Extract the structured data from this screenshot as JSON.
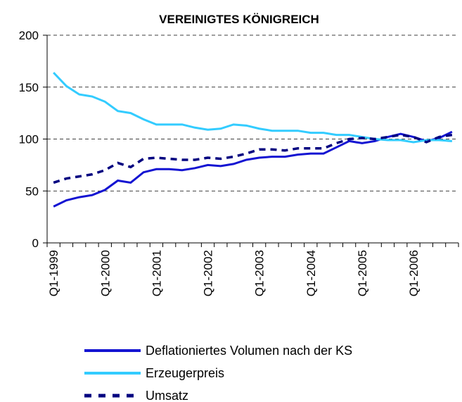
{
  "chart_data": {
    "type": "line",
    "title": "VEREINIGTES KÖNIGREICH",
    "categories": [
      "Q1-1999",
      null,
      null,
      null,
      "Q1-2000",
      null,
      null,
      null,
      "Q1-2001",
      null,
      null,
      null,
      "Q1-2002",
      null,
      null,
      null,
      "Q1-2003",
      null,
      null,
      null,
      "Q1-2004",
      null,
      null,
      null,
      "Q1-2005",
      null,
      null,
      null,
      "Q1-2006",
      null,
      null,
      null
    ],
    "series": [
      {
        "name": "Deflationiertes Volumen nach der KS",
        "color": "#1414d2",
        "dash": false,
        "values": [
          35,
          41,
          44,
          46,
          51,
          60,
          58,
          68,
          71,
          71,
          70,
          72,
          75,
          74,
          76,
          80,
          82,
          83,
          83,
          85,
          86,
          86,
          92,
          98,
          96,
          98,
          102,
          105,
          102,
          98,
          101,
          107
        ]
      },
      {
        "name": "Erzeugerpreis",
        "color": "#33ccff",
        "dash": false,
        "values": [
          164,
          151,
          143,
          141,
          136,
          127,
          125,
          119,
          114,
          114,
          114,
          111,
          109,
          110,
          114,
          113,
          110,
          108,
          108,
          108,
          106,
          106,
          104,
          104,
          102,
          100,
          99,
          99,
          97,
          99,
          99,
          98
        ]
      },
      {
        "name": "Umsatz",
        "color": "#000080",
        "dash": true,
        "values": [
          58,
          62,
          64,
          66,
          70,
          77,
          73,
          81,
          82,
          81,
          80,
          80,
          82,
          81,
          83,
          86,
          90,
          90,
          89,
          91,
          91,
          91,
          96,
          100,
          101,
          100,
          102,
          104,
          102,
          97,
          102,
          104
        ]
      }
    ],
    "ylim": [
      0,
      200
    ],
    "yticks": [
      0,
      50,
      100,
      150,
      200
    ],
    "grid": true
  }
}
